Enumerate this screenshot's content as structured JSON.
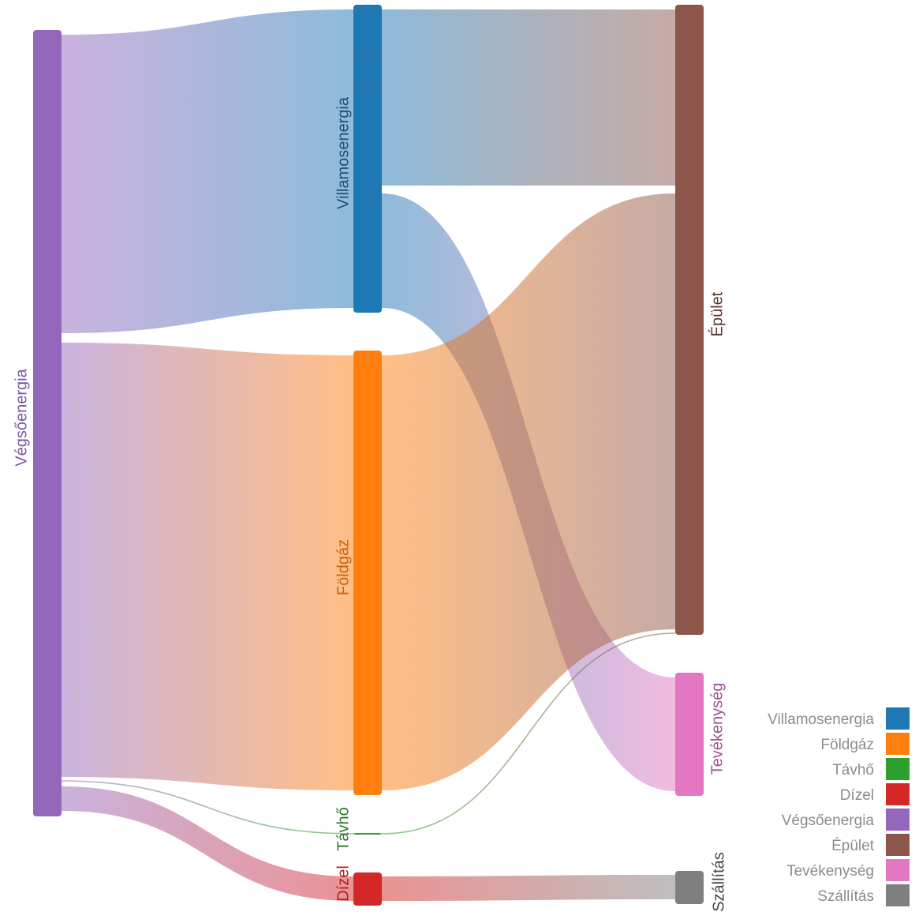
{
  "chart_data": {
    "type": "sankey",
    "nodes": [
      {
        "id": "villamos",
        "label": "Villamosenergia",
        "color": "#1f77b4",
        "label_color": "#1f4f7a"
      },
      {
        "id": "foldgaz",
        "label": "Földgáz",
        "color": "#ff7f0e",
        "label_color": "#c8640b"
      },
      {
        "id": "tavho",
        "label": "Távhő",
        "color": "#2ca02c",
        "label_color": "#2a7a2a"
      },
      {
        "id": "dizel",
        "label": "Dízel",
        "color": "#d62728",
        "label_color": "#b02020"
      },
      {
        "id": "vegso",
        "label": "Végsőenergia",
        "color": "#9467bd",
        "label_color": "#7a55a0"
      },
      {
        "id": "epulet",
        "label": "Épület",
        "color": "#8c564b",
        "label_color": "#5a362f"
      },
      {
        "id": "tevekenyseg",
        "label": "Tevékenység",
        "color": "#e377c2",
        "label_color": "#a05090"
      },
      {
        "id": "szallitas",
        "label": "Szállítás",
        "color": "#7f7f7f",
        "label_color": "#444444"
      }
    ],
    "links": [
      {
        "source": "vegso",
        "target": "villamos",
        "value": 378
      },
      {
        "source": "vegso",
        "target": "foldgaz",
        "value": 551
      },
      {
        "source": "vegso",
        "target": "tavho",
        "value": 1
      },
      {
        "source": "vegso",
        "target": "dizel",
        "value": 28
      },
      {
        "source": "villamos",
        "target": "epulet",
        "value": 221
      },
      {
        "source": "villamos",
        "target": "tevekenyseg",
        "value": 157
      },
      {
        "source": "foldgaz",
        "target": "epulet",
        "value": 551
      },
      {
        "source": "tavho",
        "target": "epulet",
        "value": 1
      },
      {
        "source": "dizel",
        "target": "szallitas",
        "value": 28
      }
    ],
    "legend": {
      "position": "bottom-right",
      "entries": [
        "Villamosenergia",
        "Földgáz",
        "Távhő",
        "Dízel",
        "Végsőenergia",
        "Épület",
        "Tevékenység",
        "Szállítás"
      ]
    }
  }
}
